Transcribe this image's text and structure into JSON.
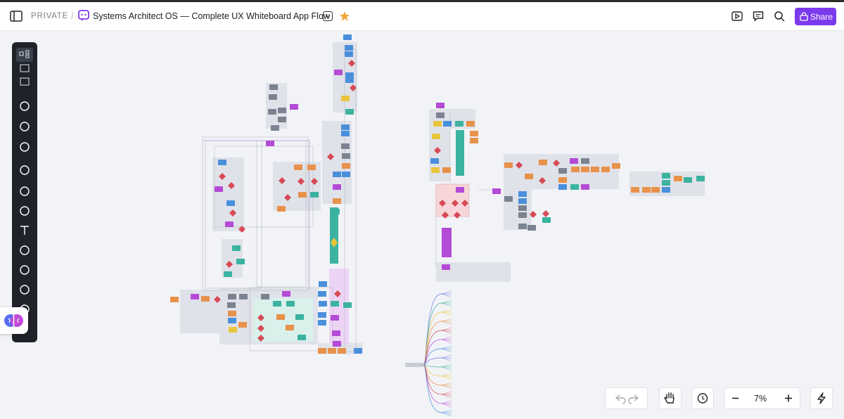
{
  "header": {
    "visibility": "PRIVATE",
    "title": "Systems Architect OS — Complete UX Whiteboard App Flow",
    "share": "Share"
  },
  "zoom": {
    "level": "7%"
  }
}
